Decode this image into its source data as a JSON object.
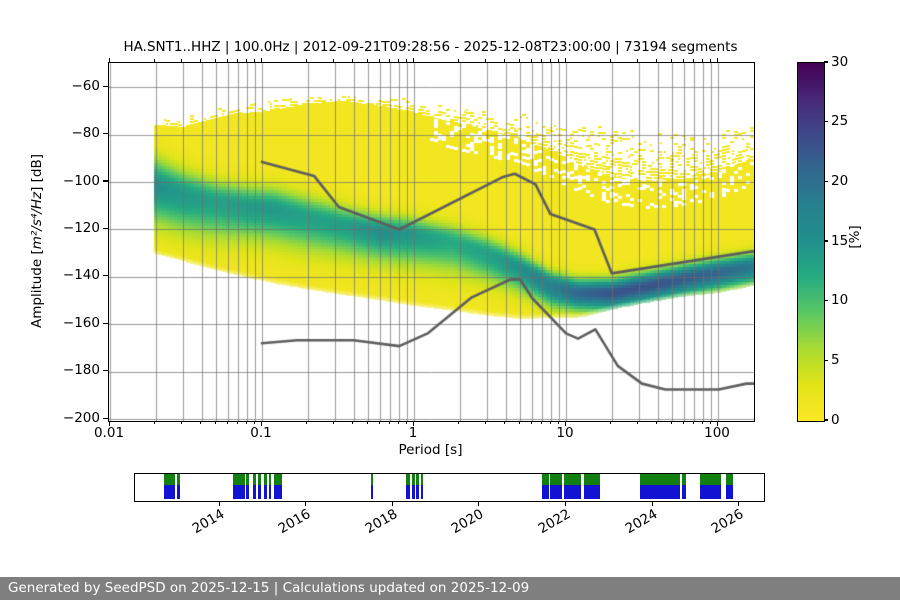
{
  "header": {
    "title": "HA.SNT1..HHZ | 100.0Hz | 2012-09-21T09:28:56 - 2025-12-08T23:00:00 | 73194 segments"
  },
  "axes": {
    "xlabel": "Period [s]",
    "ylabel_pre": "Amplitude [",
    "ylabel_math": "m²/s⁴/Hz",
    "ylabel_post": "] [dB]",
    "x_ticks": [
      {
        "v": 0.01,
        "label": "0.01"
      },
      {
        "v": 0.1,
        "label": "0.1"
      },
      {
        "v": 1,
        "label": "1"
      },
      {
        "v": 10,
        "label": "10"
      },
      {
        "v": 100,
        "label": "100"
      }
    ],
    "y_ticks": [
      {
        "v": -60,
        "label": "−60"
      },
      {
        "v": -80,
        "label": "−80"
      },
      {
        "v": -100,
        "label": "−100"
      },
      {
        "v": -120,
        "label": "−120"
      },
      {
        "v": -140,
        "label": "−140"
      },
      {
        "v": -160,
        "label": "−160"
      },
      {
        "v": -180,
        "label": "−180"
      },
      {
        "v": -200,
        "label": "−200"
      }
    ]
  },
  "colorbar": {
    "label": "[%]",
    "range": [
      0,
      30
    ],
    "colormap": "viridis_r",
    "ticks": [
      {
        "v": 0,
        "label": "0"
      },
      {
        "v": 5,
        "label": "5"
      },
      {
        "v": 10,
        "label": "10"
      },
      {
        "v": 15,
        "label": "15"
      },
      {
        "v": 20,
        "label": "20"
      },
      {
        "v": 25,
        "label": "25"
      },
      {
        "v": 30,
        "label": "30"
      }
    ]
  },
  "timeline": {
    "start": 2012.06,
    "end": 2026.54,
    "year_ticks": [
      {
        "v": 2014,
        "label": "2014"
      },
      {
        "v": 2016,
        "label": "2016"
      },
      {
        "v": 2018,
        "label": "2018"
      },
      {
        "v": 2020,
        "label": "2020"
      },
      {
        "v": 2022,
        "label": "2022"
      },
      {
        "v": 2024,
        "label": "2024"
      },
      {
        "v": 2026,
        "label": "2026"
      }
    ]
  },
  "footer": {
    "text": "Generated by SeedPSD on 2025-12-15 | Calculations updated on 2025-12-09"
  },
  "colors": {
    "grid": "rgba(110,110,110,0.70)",
    "noise_model_line": "#5e5e5e",
    "footer_bg": "#7f7f7f",
    "timeline_data_green": "#118011",
    "timeline_psd_blue": "#1212d2",
    "frame": "#000000"
  },
  "chart_data": [
    {
      "type": "heatmap",
      "title": "HA.SNT1..HHZ | 100.0Hz | 2012-09-21T09:28:56 - 2025-12-08T23:00:00 | 73194 segments",
      "xlabel": "Period [s]",
      "ylabel": "Amplitude [m^2/s^4/Hz] [dB]",
      "xscale": "log",
      "xlim": [
        0.01,
        172
      ],
      "ylim": [
        -201,
        -50
      ],
      "x_ticks": [
        0.01,
        0.1,
        1,
        10,
        100
      ],
      "y_ticks": [
        -60,
        -80,
        -100,
        -120,
        -140,
        -160,
        -180,
        -200
      ],
      "grid": true,
      "colorbar_label": "[%]",
      "colorbar_range": [
        0,
        30
      ],
      "period_range_s": [
        0.0195,
        172
      ],
      "psd_distribution": [
        {
          "p": 0.0195,
          "speckle_top": -72,
          "solid_top": -76,
          "mode": -101,
          "peak_pct": 14,
          "sigma_up": 8,
          "sigma_dn": 11,
          "bottom": -128
        },
        {
          "p": 0.03,
          "speckle_top": -73,
          "solid_top": -77,
          "mode": -105,
          "peak_pct": 13,
          "sigma_up": 7,
          "sigma_dn": 11,
          "bottom": -131
        },
        {
          "p": 0.05,
          "speckle_top": -69,
          "solid_top": -73,
          "mode": -108,
          "peak_pct": 12,
          "sigma_up": 6,
          "sigma_dn": 11,
          "bottom": -135
        },
        {
          "p": 0.08,
          "speckle_top": -66,
          "solid_top": -71,
          "mode": -110,
          "peak_pct": 12.5,
          "sigma_up": 6,
          "sigma_dn": 10,
          "bottom": -138
        },
        {
          "p": 0.12,
          "speckle_top": -64,
          "solid_top": -70,
          "mode": -111,
          "peak_pct": 13,
          "sigma_up": 6,
          "sigma_dn": 10,
          "bottom": -140.5
        },
        {
          "p": 0.2,
          "speckle_top": -63,
          "solid_top": -67,
          "mode": -114.5,
          "peak_pct": 12,
          "sigma_up": 6,
          "sigma_dn": 10,
          "bottom": -143
        },
        {
          "p": 0.35,
          "speckle_top": -62.5,
          "solid_top": -66,
          "mode": -118,
          "peak_pct": 12.5,
          "sigma_up": 5.5,
          "sigma_dn": 9,
          "bottom": -145.5
        },
        {
          "p": 0.6,
          "speckle_top": -63,
          "solid_top": -68,
          "mode": -120.5,
          "peak_pct": 14,
          "sigma_up": 5,
          "sigma_dn": 9,
          "bottom": -147.5
        },
        {
          "p": 1.0,
          "speckle_top": -65,
          "solid_top": -71,
          "mode": -122,
          "peak_pct": 13,
          "sigma_up": 5,
          "sigma_dn": 9,
          "bottom": -150
        },
        {
          "p": 1.8,
          "speckle_top": -67,
          "solid_top": -75,
          "mode": -125,
          "peak_pct": 11,
          "sigma_up": 5,
          "sigma_dn": 9,
          "bottom": -152
        },
        {
          "p": 3.0,
          "speckle_top": -69,
          "solid_top": -78,
          "mode": -130,
          "peak_pct": 12,
          "sigma_up": 5,
          "sigma_dn": 8,
          "bottom": -154
        },
        {
          "p": 5.0,
          "speckle_top": -71,
          "solid_top": -82,
          "mode": -136,
          "peak_pct": 14,
          "sigma_up": 4.5,
          "sigma_dn": 7,
          "bottom": -155.5
        },
        {
          "p": 8.0,
          "speckle_top": -73,
          "solid_top": -87,
          "mode": -143.5,
          "peak_pct": 17,
          "sigma_up": 4,
          "sigma_dn": 6,
          "bottom": -155
        },
        {
          "p": 12,
          "speckle_top": -75,
          "solid_top": -93,
          "mode": -146.5,
          "peak_pct": 20,
          "sigma_up": 4,
          "sigma_dn": 5,
          "bottom": -155
        },
        {
          "p": 20,
          "speckle_top": -77,
          "solid_top": -98,
          "mode": -146.5,
          "peak_pct": 22,
          "sigma_up": 4,
          "sigma_dn": 5,
          "bottom": -151.5
        },
        {
          "p": 35,
          "speckle_top": -79,
          "solid_top": -100,
          "mode": -143.5,
          "peak_pct": 22,
          "sigma_up": 4,
          "sigma_dn": 5,
          "bottom": -148.5
        },
        {
          "p": 60,
          "speckle_top": -80,
          "solid_top": -99,
          "mode": -140.5,
          "peak_pct": 21,
          "sigma_up": 4,
          "sigma_dn": 5,
          "bottom": -146
        },
        {
          "p": 100,
          "speckle_top": -78,
          "solid_top": -96,
          "mode": -138,
          "peak_pct": 20,
          "sigma_up": 4,
          "sigma_dn": 5,
          "bottom": -144.5
        },
        {
          "p": 172,
          "speckle_top": -74,
          "solid_top": -90,
          "mode": -135.5,
          "peak_pct": 18,
          "sigma_up": 4,
          "sigma_dn": 5,
          "bottom": -141.5
        }
      ],
      "noise_models": {
        "nhnm": [
          [
            0.1,
            -91.5
          ],
          [
            0.22,
            -97.4
          ],
          [
            0.32,
            -110.5
          ],
          [
            0.8,
            -120.0
          ],
          [
            3.8,
            -98.0
          ],
          [
            4.6,
            -96.5
          ],
          [
            6.3,
            -101.0
          ],
          [
            7.9,
            -113.5
          ],
          [
            15.4,
            -120.0
          ],
          [
            20.0,
            -138.5
          ],
          [
            354.8,
            -126.0
          ]
        ],
        "nlnm": [
          [
            0.1,
            -168.0
          ],
          [
            0.17,
            -166.7
          ],
          [
            0.4,
            -166.7
          ],
          [
            0.8,
            -169.2
          ],
          [
            1.24,
            -163.7
          ],
          [
            2.4,
            -148.6
          ],
          [
            4.3,
            -141.1
          ],
          [
            5.0,
            -141.1
          ],
          [
            6.0,
            -149.0
          ],
          [
            10.0,
            -163.8
          ],
          [
            12.0,
            -166.0
          ],
          [
            15.6,
            -162.1
          ],
          [
            21.9,
            -177.5
          ],
          [
            31.6,
            -185.0
          ],
          [
            45.0,
            -187.5
          ],
          [
            70.0,
            -187.5
          ],
          [
            101.0,
            -187.5
          ],
          [
            154.0,
            -185.0
          ],
          [
            328.0,
            -185.0
          ]
        ]
      }
    },
    {
      "type": "timeline",
      "xlim": [
        2012.06,
        2026.54
      ],
      "x_ticks": [
        2014,
        2016,
        2018,
        2020,
        2022,
        2024,
        2026
      ],
      "segments": [
        [
          2012.72,
          2012.99
        ],
        [
          2013.04,
          2013.09
        ],
        [
          2014.33,
          2014.59
        ],
        [
          2014.63,
          2014.7
        ],
        [
          2014.79,
          2014.86
        ],
        [
          2014.91,
          2014.98
        ],
        [
          2015.03,
          2015.1
        ],
        [
          2015.15,
          2015.21
        ],
        [
          2015.26,
          2015.46
        ],
        [
          2017.51,
          2017.55
        ],
        [
          2018.33,
          2018.42
        ],
        [
          2018.46,
          2018.53
        ],
        [
          2018.56,
          2018.63
        ],
        [
          2018.66,
          2018.71
        ],
        [
          2021.47,
          2021.61
        ],
        [
          2021.65,
          2021.91
        ],
        [
          2021.97,
          2022.36
        ],
        [
          2022.43,
          2022.81
        ],
        [
          2023.72,
          2024.65
        ],
        [
          2024.69,
          2024.78
        ],
        [
          2025.1,
          2025.6
        ],
        [
          2025.7,
          2025.88
        ]
      ]
    }
  ]
}
